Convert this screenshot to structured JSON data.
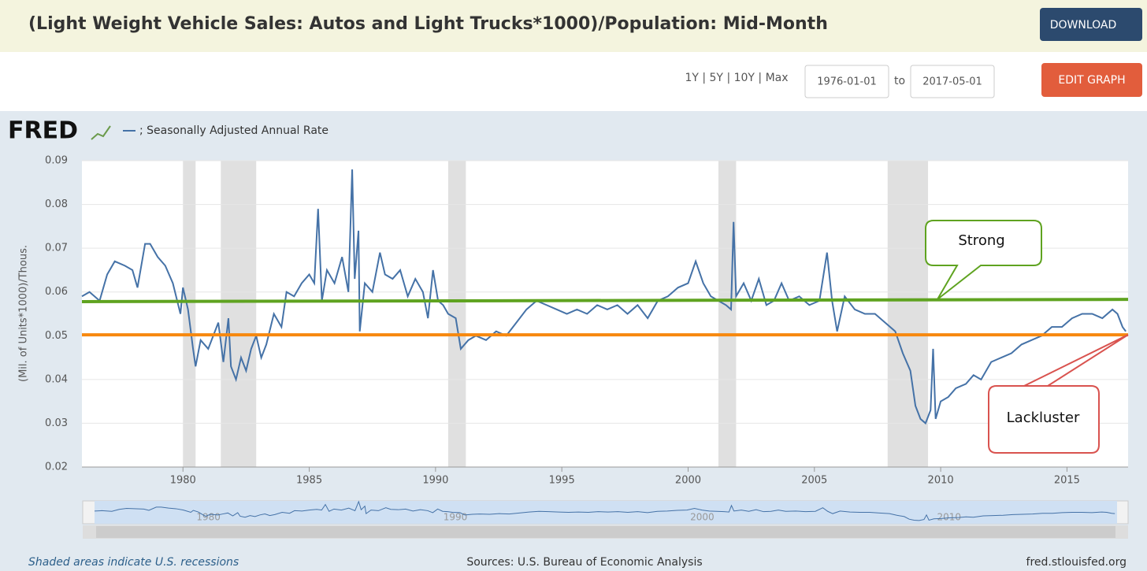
{
  "header": {
    "title": "(Light Weight Vehicle Sales: Autos and Light Trucks*1000)/Population: Mid-Month",
    "download": "DOWNLOAD"
  },
  "controls": {
    "ranges": "1Y | 5Y | 10Y | Max",
    "start": "1976-01-01",
    "to": "to",
    "end": "2017-05-01",
    "edit": "EDIT GRAPH"
  },
  "logo": "FRED",
  "footer": {
    "note": "Shaded areas indicate U.S. recessions",
    "source": "Sources: U.S. Bureau of Economic Analysis",
    "site": "fred.stlouisfed.org"
  },
  "chart_data": {
    "type": "line",
    "ylabel": "(Mil. of Units*1000)/Thous.",
    "xlim": [
      1976,
      2017.42
    ],
    "ylim": [
      0.02,
      0.09
    ],
    "xticks": [
      1980,
      1985,
      1990,
      1995,
      2000,
      2005,
      2010,
      2015
    ],
    "yticks": [
      0.02,
      0.03,
      0.04,
      0.05,
      0.06,
      0.07,
      0.08,
      0.09
    ],
    "grid": true,
    "recessions": [
      [
        1980.0,
        1980.5
      ],
      [
        1981.5,
        1982.9
      ],
      [
        1990.5,
        1991.2
      ],
      [
        2001.2,
        2001.9
      ],
      [
        2007.9,
        2009.5
      ]
    ],
    "navigator_ticks": [
      1980,
      1990,
      2000,
      2010
    ],
    "x": [
      1976.0,
      1976.3,
      1976.7,
      1977.0,
      1977.3,
      1977.7,
      1978.0,
      1978.2,
      1978.5,
      1978.7,
      1979.0,
      1979.3,
      1979.6,
      1979.9,
      1980.0,
      1980.2,
      1980.4,
      1980.5,
      1980.7,
      1981.0,
      1981.2,
      1981.4,
      1981.6,
      1981.8,
      1981.9,
      1982.1,
      1982.3,
      1982.5,
      1982.7,
      1982.9,
      1983.1,
      1983.3,
      1983.6,
      1983.9,
      1984.1,
      1984.4,
      1984.7,
      1985.0,
      1985.2,
      1985.35,
      1985.5,
      1985.7,
      1986.0,
      1986.3,
      1986.55,
      1986.7,
      1986.8,
      1986.95,
      1987.0,
      1987.2,
      1987.5,
      1987.8,
      1988.0,
      1988.3,
      1988.6,
      1988.9,
      1989.2,
      1989.5,
      1989.7,
      1989.9,
      1990.1,
      1990.3,
      1990.5,
      1990.8,
      1991.0,
      1991.3,
      1991.6,
      1992.0,
      1992.4,
      1992.8,
      1993.2,
      1993.6,
      1994.0,
      1994.4,
      1994.8,
      1995.2,
      1995.6,
      1996.0,
      1996.4,
      1996.8,
      1997.2,
      1997.6,
      1998.0,
      1998.4,
      1998.8,
      1999.2,
      1999.6,
      2000.0,
      2000.3,
      2000.6,
      2000.9,
      2001.2,
      2001.5,
      2001.7,
      2001.8,
      2001.9,
      2002.2,
      2002.5,
      2002.8,
      2003.1,
      2003.4,
      2003.7,
      2004.0,
      2004.4,
      2004.8,
      2005.2,
      2005.5,
      2005.7,
      2005.9,
      2006.2,
      2006.6,
      2007.0,
      2007.4,
      2007.8,
      2008.2,
      2008.5,
      2008.8,
      2009.0,
      2009.2,
      2009.4,
      2009.6,
      2009.7,
      2009.8,
      2010.0,
      2010.3,
      2010.6,
      2011.0,
      2011.3,
      2011.6,
      2012.0,
      2012.4,
      2012.8,
      2013.2,
      2013.6,
      2014.0,
      2014.4,
      2014.8,
      2015.2,
      2015.6,
      2016.0,
      2016.4,
      2016.8,
      2017.0,
      2017.2,
      2017.33
    ],
    "series": [
      {
        "name": "; Seasonally Adjusted Annual Rate",
        "color": "#4572a7",
        "values": [
          0.059,
          0.06,
          0.058,
          0.064,
          0.067,
          0.066,
          0.065,
          0.061,
          0.071,
          0.071,
          0.068,
          0.066,
          0.062,
          0.055,
          0.061,
          0.056,
          0.047,
          0.043,
          0.049,
          0.047,
          0.05,
          0.053,
          0.044,
          0.054,
          0.043,
          0.04,
          0.045,
          0.042,
          0.047,
          0.05,
          0.045,
          0.048,
          0.055,
          0.052,
          0.06,
          0.059,
          0.062,
          0.064,
          0.062,
          0.079,
          0.058,
          0.065,
          0.062,
          0.068,
          0.06,
          0.088,
          0.063,
          0.074,
          0.051,
          0.062,
          0.06,
          0.069,
          0.064,
          0.063,
          0.065,
          0.059,
          0.063,
          0.06,
          0.054,
          0.065,
          0.058,
          0.057,
          0.055,
          0.054,
          0.047,
          0.049,
          0.05,
          0.049,
          0.051,
          0.05,
          0.053,
          0.056,
          0.058,
          0.057,
          0.056,
          0.055,
          0.056,
          0.055,
          0.057,
          0.056,
          0.057,
          0.055,
          0.057,
          0.054,
          0.058,
          0.059,
          0.061,
          0.062,
          0.067,
          0.062,
          0.059,
          0.058,
          0.057,
          0.056,
          0.076,
          0.059,
          0.062,
          0.058,
          0.063,
          0.057,
          0.058,
          0.062,
          0.058,
          0.059,
          0.057,
          0.058,
          0.069,
          0.058,
          0.051,
          0.059,
          0.056,
          0.055,
          0.055,
          0.053,
          0.051,
          0.046,
          0.042,
          0.034,
          0.031,
          0.03,
          0.033,
          0.047,
          0.031,
          0.035,
          0.036,
          0.038,
          0.039,
          0.041,
          0.04,
          0.044,
          0.045,
          0.046,
          0.048,
          0.049,
          0.05,
          0.052,
          0.052,
          0.054,
          0.055,
          0.055,
          0.054,
          0.056,
          0.055,
          0.052,
          0.051
        ]
      }
    ],
    "reference_lines": [
      {
        "x": [
          1976,
          2017.42
        ],
        "values": [
          0.0578,
          0.0583
        ],
        "color": "#5fa320"
      },
      {
        "x": [
          1976,
          2017.42
        ],
        "values": [
          0.0502,
          0.0502
        ],
        "color": "#f7880e"
      }
    ],
    "annotations": [
      "Strong",
      "Lackluster"
    ]
  }
}
